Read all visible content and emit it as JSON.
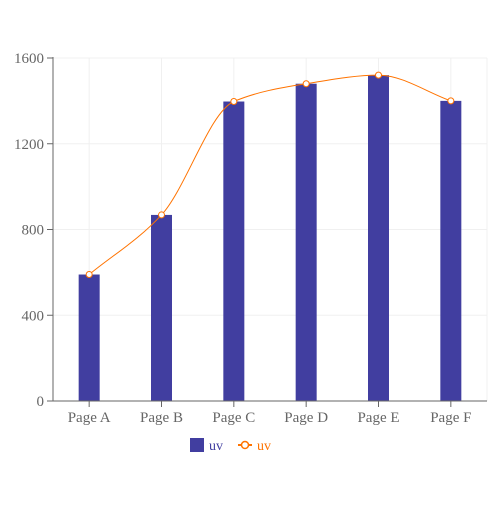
{
  "chart_data": {
    "type": "bar",
    "categories": [
      "Page A",
      "Page B",
      "Page C",
      "Page D",
      "Page E",
      "Page F"
    ],
    "series": [
      {
        "name": "uv",
        "type": "bar",
        "values": [
          590,
          868,
          1397,
          1480,
          1520,
          1400
        ],
        "color": "#413ea0"
      },
      {
        "name": "uv",
        "type": "line",
        "values": [
          590,
          868,
          1397,
          1480,
          1520,
          1400
        ],
        "color": "#ff7300"
      }
    ],
    "ylim": [
      0,
      1600
    ],
    "yticks": [
      0,
      400,
      800,
      1200,
      1600
    ],
    "grid": true,
    "legend_position": "bottom-center",
    "title": "",
    "xlabel": "",
    "ylabel": ""
  },
  "colors": {
    "axis": "#666666",
    "grid": "#f0f0f0",
    "tick_text": "#666666",
    "legend_bar": "#413ea0",
    "legend_line": "#ff7300"
  }
}
